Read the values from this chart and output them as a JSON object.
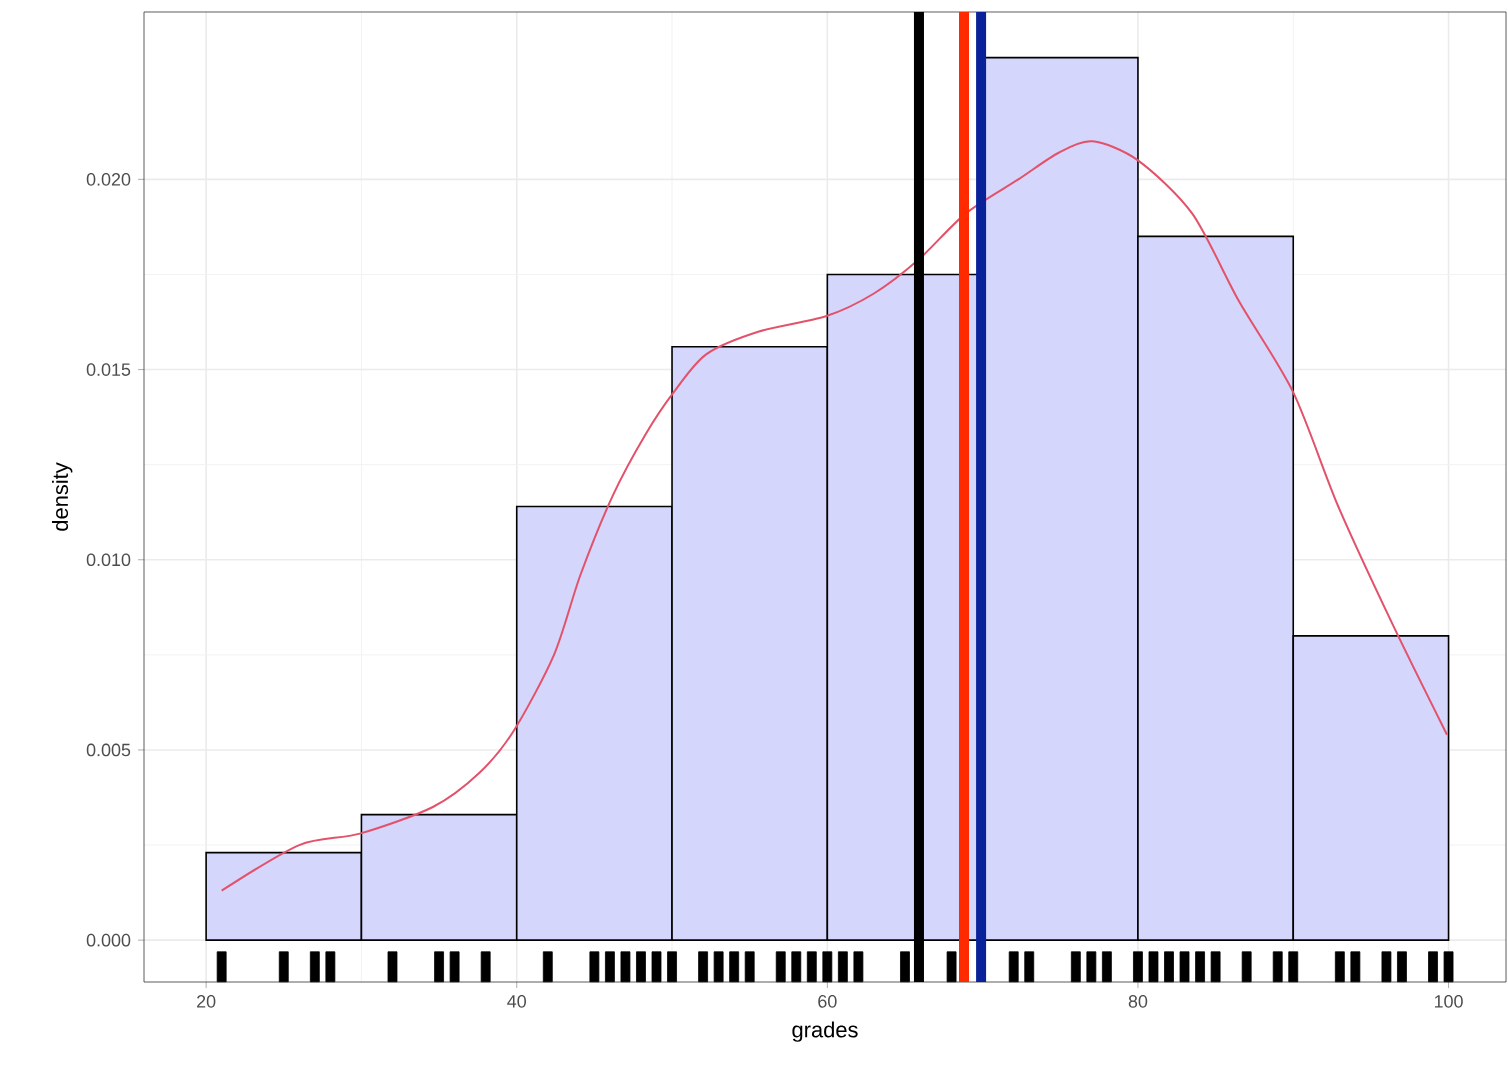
{
  "chart_data": {
    "type": "histogram",
    "xlabel": "grades",
    "ylabel": "density",
    "bins": [
      20,
      30,
      40,
      50,
      60,
      70,
      80,
      90,
      100
    ],
    "values": [
      0.0023,
      0.0033,
      0.0114,
      0.0156,
      0.0175,
      0.0232,
      0.0185,
      0.008
    ],
    "color": "#d4d6fb",
    "series": [
      {
        "type": "line",
        "color": "#e2526b",
        "x": [
          21,
          26,
          29.9,
          34.6,
          37.6,
          39.8,
          42.4,
          44.1,
          46.2,
          48.3,
          50.1,
          52.2,
          55.6,
          59.9,
          63.0,
          65.9,
          68.9,
          72.3,
          74.9,
          77.1,
          80.0,
          83.5,
          86.5,
          90.0,
          92.9,
          96.4,
          99.9
        ],
        "values": [
          0.0013,
          0.0025,
          0.0028,
          0.0035,
          0.0044,
          0.0055,
          0.0075,
          0.0096,
          0.0117,
          0.0133,
          0.0144,
          0.0154,
          0.016,
          0.0164,
          0.017,
          0.0179,
          0.0191,
          0.02,
          0.0207,
          0.021,
          0.0205,
          0.0191,
          0.0168,
          0.0144,
          0.0114,
          0.0083,
          0.0054
        ]
      },
      {
        "type": "scatter",
        "color": "#000000",
        "marker": "square",
        "x": [
          21,
          25,
          27,
          28,
          32,
          35,
          36,
          38,
          42,
          45,
          46,
          47,
          48,
          49,
          50,
          52,
          53,
          54,
          55,
          57,
          58,
          59,
          60,
          61,
          62,
          65,
          68,
          72,
          73,
          76,
          77,
          78,
          80,
          81,
          82,
          83,
          84,
          85,
          87,
          89,
          90,
          93,
          94,
          96,
          97,
          99,
          100
        ],
        "values": [
          -0.0007,
          -0.0007,
          -0.0007,
          -0.0007,
          -0.0007,
          -0.0007,
          -0.0007,
          -0.0007,
          -0.0007,
          -0.0007,
          -0.0007,
          -0.0007,
          -0.0007,
          -0.0007,
          -0.0007,
          -0.0007,
          -0.0007,
          -0.0007,
          -0.0007,
          -0.0007,
          -0.0007,
          -0.0007,
          -0.0007,
          -0.0007,
          -0.0007,
          -0.0007,
          -0.0007,
          -0.0007,
          -0.0007,
          -0.0007,
          -0.0007,
          -0.0007,
          -0.0007,
          -0.0007,
          -0.0007,
          -0.0007,
          -0.0007,
          -0.0007,
          -0.0007,
          -0.0007,
          -0.0007,
          -0.0007,
          -0.0007,
          -0.0007,
          -0.0007,
          -0.0007,
          -0.0007
        ]
      }
    ],
    "ref_lines": [
      {
        "axis": "x",
        "value": 65.9,
        "color": "#000000"
      },
      {
        "axis": "x",
        "value": 68.8,
        "color": "#ff2a00"
      },
      {
        "axis": "x",
        "value": 69.9,
        "color": "#0a2299"
      }
    ],
    "xlim": [
      16,
      103.7
    ],
    "ylim": [
      -0.0011,
      0.0244
    ],
    "xticks": [
      20,
      40,
      60,
      80,
      100
    ],
    "yticks": [
      {
        "value": 0,
        "label": "0.000"
      },
      {
        "value": 0.005,
        "label": "0.005"
      },
      {
        "value": 0.01,
        "label": "0.010"
      },
      {
        "value": 0.015,
        "label": "0.015"
      },
      {
        "value": 0.02,
        "label": "0.020"
      }
    ],
    "grid": true
  }
}
